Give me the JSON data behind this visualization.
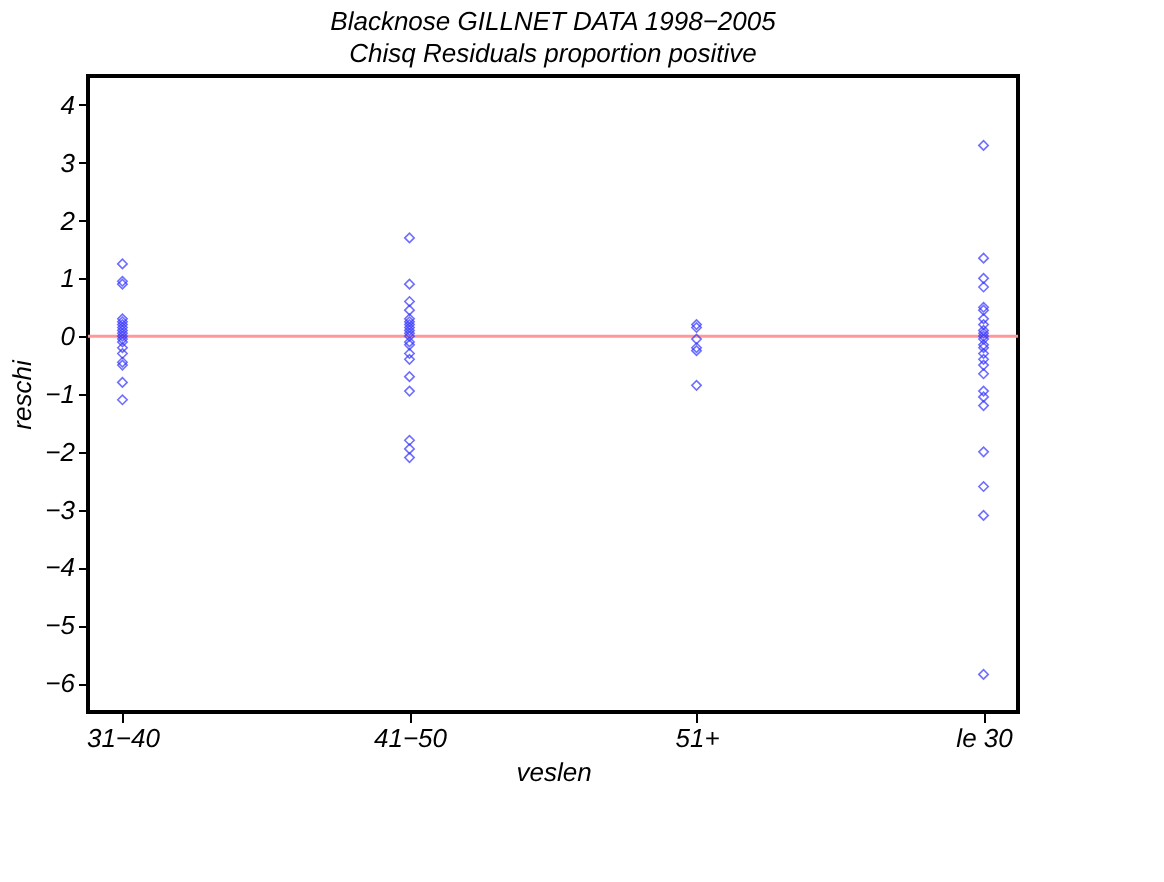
{
  "chart_data": {
    "type": "scatter",
    "title": "Blacknose GILLNET DATA 1998−2005",
    "subtitle": "Chisq Residuals proportion positive",
    "xlabel": "veslen",
    "ylabel": "reschi",
    "categories": [
      "31−40",
      "41−50",
      "51+",
      "le 30"
    ],
    "series": [
      {
        "color": "#3333ff",
        "marker": "diamond",
        "x": [
          "31−40",
          "31−40",
          "31−40",
          "31−40",
          "31−40",
          "31−40",
          "31−40",
          "31−40",
          "31−40",
          "31−40",
          "31−40",
          "31−40",
          "31−40",
          "31−40",
          "31−40",
          "31−40",
          "31−40",
          "31−40",
          "41−50",
          "41−50",
          "41−50",
          "41−50",
          "41−50",
          "41−50",
          "41−50",
          "41−50",
          "41−50",
          "41−50",
          "41−50",
          "41−50",
          "41−50",
          "41−50",
          "41−50",
          "41−50",
          "41−50",
          "41−50",
          "41−50",
          "41−50",
          "51+",
          "51+",
          "51+",
          "51+",
          "51+",
          "51+",
          "le 30",
          "le 30",
          "le 30",
          "le 30",
          "le 30",
          "le 30",
          "le 30",
          "le 30",
          "le 30",
          "le 30",
          "le 30",
          "le 30",
          "le 30",
          "le 30",
          "le 30",
          "le 30",
          "le 30",
          "le 30",
          "le 30",
          "le 30",
          "le 30",
          "le 30",
          "le 30",
          "le 30",
          "le 30"
        ],
        "values": [
          1.25,
          0.95,
          0.9,
          0.3,
          0.25,
          0.2,
          0.15,
          0.1,
          0.05,
          0,
          -0.05,
          -0.1,
          -0.2,
          -0.3,
          -0.45,
          -0.5,
          -0.8,
          -1.1,
          1.7,
          0.9,
          0.6,
          0.45,
          0.3,
          0.25,
          0.2,
          0.15,
          0.1,
          0.05,
          0,
          -0.1,
          -0.15,
          -0.3,
          -0.4,
          -0.7,
          -0.95,
          -1.8,
          -1.95,
          -2.1,
          0.2,
          0.15,
          -0.05,
          -0.2,
          -0.25,
          -0.85,
          3.3,
          1.35,
          1.0,
          0.85,
          0.5,
          0.45,
          0.3,
          0.2,
          0.1,
          0.05,
          0,
          -0.05,
          -0.15,
          -0.2,
          -0.3,
          -0.4,
          -0.5,
          -0.65,
          -0.95,
          -1.05,
          -1.2,
          -2.0,
          -2.6,
          -3.1,
          -5.85
        ]
      }
    ],
    "ylim": [
      -6.5,
      4.5
    ],
    "yticks": [
      -6,
      -5,
      -4,
      -3,
      -2,
      -1,
      0,
      1,
      2,
      3,
      4
    ],
    "ref_lines": [
      {
        "axis": "y",
        "value": 0,
        "color": "#ff9999"
      }
    ],
    "grid": false
  }
}
